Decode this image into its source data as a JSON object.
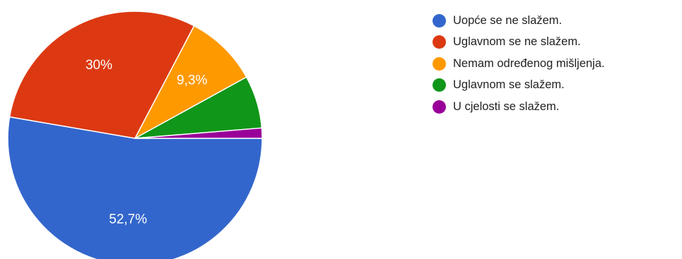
{
  "chart_data": {
    "type": "pie",
    "title": "",
    "start_angle_deg": 90,
    "direction": "clockwise",
    "slices": [
      {
        "label": "Uopće se ne slažem.",
        "value": 52.7,
        "display": "52,7%",
        "color": "#3366cc",
        "show_label": true
      },
      {
        "label": "Uglavnom se ne slažem.",
        "value": 30.0,
        "display": "30%",
        "color": "#dc3912",
        "show_label": true
      },
      {
        "label": "Nemam određenog mišljenja.",
        "value": 9.3,
        "display": "9,3%",
        "color": "#ff9900",
        "show_label": true
      },
      {
        "label": "Uglavnom se slažem.",
        "value": 6.7,
        "display": "",
        "color": "#109618",
        "show_label": false
      },
      {
        "label": "U cjelosti se slažem.",
        "value": 1.3,
        "display": "",
        "color": "#990099",
        "show_label": false
      }
    ],
    "legend_position": "right"
  }
}
